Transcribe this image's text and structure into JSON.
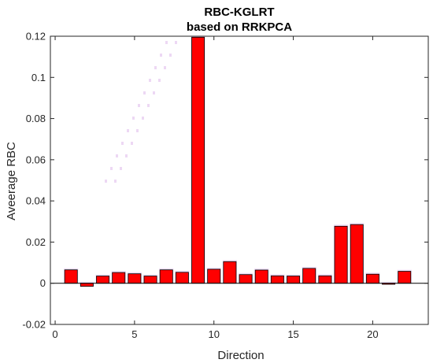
{
  "chart_data": {
    "type": "bar",
    "title": "RBC-KGLRT",
    "subtitle": "based on RRKPCA",
    "xlabel": "Direction",
    "ylabel": "Aveerage RBC",
    "x": [
      1,
      2,
      3,
      4,
      5,
      6,
      7,
      8,
      9,
      10,
      11,
      12,
      13,
      14,
      15,
      16,
      17,
      18,
      19,
      20,
      21,
      22
    ],
    "values": [
      0.0065,
      -0.0015,
      0.0035,
      0.0052,
      0.0046,
      0.0035,
      0.0065,
      0.0053,
      0.1195,
      0.0068,
      0.0105,
      0.0042,
      0.0064,
      0.0036,
      0.0035,
      0.0072,
      0.0036,
      0.0277,
      0.0285,
      0.0044,
      -0.0005,
      0.0058
    ],
    "xlim": [
      -0.3,
      23.5
    ],
    "ylim": [
      -0.02,
      0.12
    ],
    "xticks": [
      0,
      5,
      10,
      15,
      20
    ],
    "xtick_labels": [
      "0",
      "5",
      "10",
      "15",
      "20"
    ],
    "yticks": [
      -0.02,
      0,
      0.02,
      0.04,
      0.06,
      0.08,
      0.1,
      0.12
    ],
    "ytick_labels": [
      "-0.02",
      "0",
      "0.02",
      "0.04",
      "0.06",
      "0.08",
      "0.1",
      "0.12"
    ],
    "grid": false,
    "bar_color": "#ff0000",
    "bar_edge_color": "#000000",
    "artifact_color": "#e6c8f0"
  }
}
